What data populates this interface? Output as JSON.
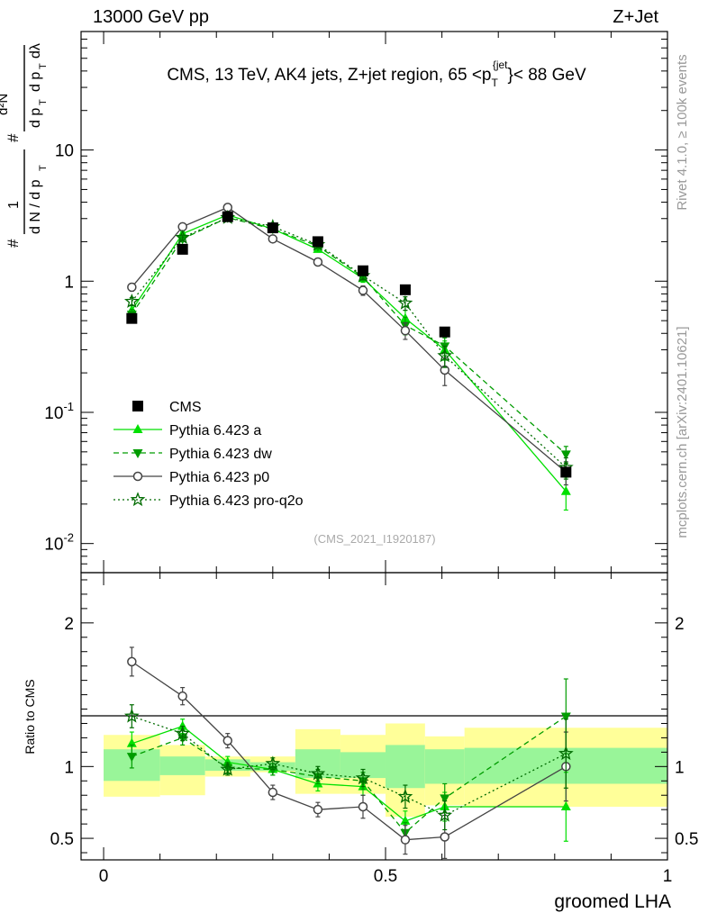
{
  "header": {
    "left": "13000 GeV pp",
    "right": "Z+Jet"
  },
  "side_labels": {
    "rivet": "Rivet 4.1.0, ≥ 100k events",
    "mcplots": "mcplots.cern.ch [arXiv:2401.10621]"
  },
  "chart_data": [
    {
      "type": "line",
      "panel": "main",
      "title": "CMS, 13 TeV, AK4 jets, Z+jet region, 65 <p_T^{jet}< 88 GeV",
      "ylabel": "(1/(dN/dp_T)) d²N/(dp_T dλ)",
      "yscale": "log",
      "ylim": [
        0.006,
        80
      ],
      "xlim": [
        -0.04,
        1.0
      ],
      "watermark": "(CMS_2021_I1920187)",
      "y_tick_labels": [
        "10^{-2}",
        "10^{-1}",
        "1",
        "10"
      ],
      "x": [
        0.05,
        0.14,
        0.22,
        0.3,
        0.38,
        0.46,
        0.535,
        0.605,
        0.82
      ],
      "series": [
        {
          "name": "CMS",
          "style": "data",
          "color": "#000000",
          "values": [
            0.52,
            1.75,
            3.1,
            2.55,
            2.0,
            1.2,
            0.86,
            0.41,
            0.035
          ]
        },
        {
          "name": "Pythia 6.423 a",
          "style": "solid-triangle-up",
          "color": "#00e000",
          "values": [
            0.6,
            2.3,
            3.2,
            2.5,
            1.75,
            1.05,
            0.52,
            0.3,
            0.025
          ],
          "errors": [
            0.05,
            0.1,
            0.12,
            0.1,
            0.08,
            0.07,
            0.08,
            0.05,
            0.007
          ]
        },
        {
          "name": "Pythia 6.423 dw",
          "style": "dashed-triangle-down",
          "color": "#009c00",
          "values": [
            0.56,
            2.1,
            3.05,
            2.5,
            1.85,
            1.08,
            0.46,
            0.32,
            0.048
          ],
          "errors": [
            0.05,
            0.1,
            0.12,
            0.1,
            0.08,
            0.07,
            0.07,
            0.05,
            0.007
          ]
        },
        {
          "name": "Pythia 6.423 p0",
          "style": "solid-open-circle",
          "color": "#444444",
          "values": [
            0.9,
            2.6,
            3.65,
            2.1,
            1.4,
            0.85,
            0.42,
            0.21,
            0.035
          ],
          "errors": [
            0.06,
            0.1,
            0.12,
            0.1,
            0.08,
            0.07,
            0.06,
            0.05,
            0.007
          ]
        },
        {
          "name": "Pythia 6.423 pro-q2o",
          "style": "dotted-star",
          "color": "#006b00",
          "values": [
            0.7,
            2.15,
            3.05,
            2.6,
            1.9,
            1.1,
            0.68,
            0.27,
            0.038
          ],
          "errors": [
            0.05,
            0.1,
            0.12,
            0.1,
            0.08,
            0.07,
            0.08,
            0.05,
            0.007
          ]
        }
      ]
    },
    {
      "type": "line",
      "panel": "ratio",
      "ylabel": "Ratio to CMS",
      "xlabel": "groomed LHA",
      "ylim": [
        0.35,
        2.35
      ],
      "xlim": [
        -0.04,
        1.0
      ],
      "y_tick_labels": [
        "0.5",
        "1",
        "2"
      ],
      "x_tick_labels": [
        "0",
        "0.5",
        "1"
      ],
      "x": [
        0.05,
        0.14,
        0.22,
        0.3,
        0.38,
        0.46,
        0.535,
        0.605,
        0.82
      ],
      "bins": [
        [
          0.0,
          0.1
        ],
        [
          0.1,
          0.18
        ],
        [
          0.18,
          0.26
        ],
        [
          0.26,
          0.34
        ],
        [
          0.34,
          0.42
        ],
        [
          0.42,
          0.5
        ],
        [
          0.5,
          0.57
        ],
        [
          0.57,
          0.64
        ],
        [
          0.64,
          1.0
        ]
      ],
      "band_inner": [
        [
          0.9,
          1.12
        ],
        [
          0.94,
          1.07
        ],
        [
          0.97,
          1.05
        ],
        [
          0.97,
          1.03
        ],
        [
          0.92,
          1.12
        ],
        [
          0.92,
          1.1
        ],
        [
          0.85,
          1.15
        ],
        [
          0.88,
          1.12
        ],
        [
          0.88,
          1.13
        ]
      ],
      "band_outer": [
        [
          0.79,
          1.22
        ],
        [
          0.8,
          1.15
        ],
        [
          0.93,
          1.07
        ],
        [
          0.96,
          1.07
        ],
        [
          0.81,
          1.26
        ],
        [
          0.81,
          1.22
        ],
        [
          0.65,
          1.3
        ],
        [
          0.73,
          1.21
        ],
        [
          0.72,
          1.27
        ]
      ],
      "series": [
        {
          "name": "Pythia 6.423 a",
          "style": "solid-triangle-up",
          "color": "#00e000",
          "values": [
            1.16,
            1.28,
            1.03,
            0.98,
            0.88,
            0.86,
            0.62,
            0.72,
            0.72
          ],
          "errors": [
            0.08,
            0.05,
            0.04,
            0.04,
            0.05,
            0.06,
            0.07,
            0.1,
            0.24
          ]
        },
        {
          "name": "Pythia 6.423 dw",
          "style": "dashed-triangle-down",
          "color": "#009c00",
          "values": [
            1.07,
            1.2,
            0.99,
            0.98,
            0.93,
            0.9,
            0.54,
            0.78,
            1.35
          ],
          "errors": [
            0.08,
            0.05,
            0.04,
            0.04,
            0.05,
            0.06,
            0.07,
            0.1,
            0.26
          ]
        },
        {
          "name": "Pythia 6.423 p0",
          "style": "solid-open-circle",
          "color": "#444444",
          "values": [
            1.73,
            1.49,
            1.18,
            0.82,
            0.7,
            0.72,
            0.49,
            0.51,
            1.0
          ],
          "errors": [
            0.1,
            0.06,
            0.05,
            0.05,
            0.05,
            0.08,
            0.1,
            0.15,
            0.24
          ]
        },
        {
          "name": "Pythia 6.423 pro-q2o",
          "style": "dotted-star",
          "color": "#006b00",
          "values": [
            1.35,
            1.23,
            0.98,
            1.02,
            0.95,
            0.92,
            0.79,
            0.66,
            1.09
          ],
          "errors": [
            0.08,
            0.05,
            0.04,
            0.04,
            0.05,
            0.06,
            0.08,
            0.1,
            0.24
          ]
        }
      ]
    }
  ]
}
